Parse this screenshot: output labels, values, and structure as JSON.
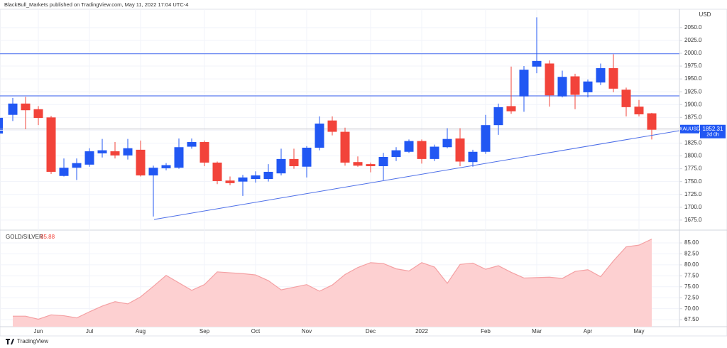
{
  "header": {
    "title": "BlackBull_Markets published on TradingView.com, May 11, 2022 17:04 UTC-4"
  },
  "footer": {
    "logo": "TradingView"
  },
  "chart_data": [
    {
      "type": "candlestick",
      "symbol": "XAUUSD",
      "currency": "USD",
      "last_price": 1852.31,
      "countdown": "2d 0h",
      "up_color": "#2157f3",
      "down_color": "#f2433a",
      "grid": true,
      "categories": [
        null,
        null,
        "Jun",
        null,
        null,
        null,
        "Jul",
        null,
        null,
        null,
        "Aug",
        null,
        null,
        null,
        null,
        "Sep",
        null,
        null,
        null,
        "Oct",
        null,
        null,
        null,
        "Nov",
        null,
        null,
        null,
        null,
        "Dec",
        null,
        null,
        null,
        "2022",
        null,
        null,
        null,
        null,
        "Feb",
        null,
        null,
        null,
        "Mar",
        null,
        null,
        null,
        "Apr",
        null,
        null,
        null,
        "May",
        null
      ],
      "open": [
        1880,
        1902,
        1891,
        1875,
        1761,
        1777,
        1783,
        1805,
        1809,
        1801,
        1812,
        1762,
        1776,
        1777,
        1818,
        1827,
        1787,
        1752,
        1750,
        1755,
        1755,
        1766,
        1794,
        1779,
        1816,
        1869,
        1847,
        1788,
        1784,
        1780,
        1798,
        1808,
        1829,
        1794,
        1817,
        1834,
        1788,
        1808,
        1860,
        1897,
        1916,
        1974,
        1980,
        1916,
        1955,
        1924,
        1943,
        1971,
        1929,
        1896,
        1883
      ],
      "high": [
        1913,
        1915,
        1897,
        1878,
        1795,
        1795,
        1815,
        1833,
        1827,
        1833,
        1830,
        1781,
        1786,
        1834,
        1834,
        1830,
        1789,
        1760,
        1763,
        1770,
        1784,
        1814,
        1814,
        1819,
        1877,
        1877,
        1855,
        1799,
        1787,
        1806,
        1817,
        1832,
        1832,
        1822,
        1854,
        1854,
        1812,
        1880,
        1902,
        1974,
        1975,
        2070,
        1986,
        1966,
        1960,
        1949,
        1980,
        1998,
        1933,
        1909,
        1884
      ],
      "low": [
        1868,
        1852,
        1860,
        1765,
        1760,
        1753,
        1779,
        1797,
        1795,
        1793,
        1760,
        1682,
        1772,
        1775,
        1814,
        1780,
        1745,
        1743,
        1722,
        1748,
        1750,
        1762,
        1775,
        1758,
        1811,
        1840,
        1781,
        1779,
        1768,
        1753,
        1790,
        1806,
        1785,
        1790,
        1815,
        1780,
        1779,
        1804,
        1841,
        1882,
        1886,
        1961,
        1896,
        1914,
        1891,
        1914,
        1938,
        1924,
        1877,
        1877,
        1832
      ],
      "close": [
        1902,
        1889,
        1874,
        1769,
        1777,
        1786,
        1809,
        1811,
        1801,
        1815,
        1762,
        1777,
        1782,
        1817,
        1827,
        1787,
        1751,
        1747,
        1758,
        1762,
        1769,
        1794,
        1780,
        1816,
        1863,
        1847,
        1787,
        1781,
        1780,
        1798,
        1811,
        1829,
        1794,
        1818,
        1833,
        1789,
        1808,
        1860,
        1895,
        1887,
        1968,
        1985,
        1918,
        1954,
        1919,
        1945,
        1971,
        1931,
        1895,
        1881,
        1851
      ],
      "hlines": [
        1999,
        1917
      ],
      "hline_color": "#5b7cf0",
      "ylim": [
        1661,
        2083
      ],
      "yticks": [
        {
          "value": 1675,
          "label": "1675.0"
        },
        {
          "value": 1700,
          "label": "1700.0"
        },
        {
          "value": 1725,
          "label": "1725.0"
        },
        {
          "value": 1750,
          "label": "1750.0"
        },
        {
          "value": 1775,
          "label": "1775.0"
        },
        {
          "value": 1800,
          "label": "1800.0"
        },
        {
          "value": 1825,
          "label": "1825.0"
        },
        {
          "value": 1850,
          "label": "1850.0"
        },
        {
          "value": 1875,
          "label": "1875.0"
        },
        {
          "value": 1900,
          "label": "1900.0"
        },
        {
          "value": 1925,
          "label": "1925.0"
        },
        {
          "value": 1950,
          "label": "1950.0"
        },
        {
          "value": 1975,
          "label": "1975.0"
        },
        {
          "value": 2000,
          "label": "2000.0"
        },
        {
          "value": 2025,
          "label": "2025.0"
        },
        {
          "value": 2050,
          "label": "2050.0"
        }
      ]
    },
    {
      "type": "area",
      "name": "GOLD/SILVER",
      "color": "#f4a0a3",
      "fill": "#fdd0d1",
      "label_color": "#f2433a",
      "values": [
        68.3,
        68.3,
        67.6,
        68.6,
        68.4,
        67.9,
        69.3,
        70.6,
        71.6,
        71.1,
        72.7,
        75.1,
        77.6,
        75.9,
        74.2,
        75.5,
        78.4,
        78.2,
        78.0,
        77.7,
        76.4,
        74.3,
        74.9,
        75.5,
        74.0,
        75.4,
        77.8,
        79.4,
        80.5,
        80.3,
        79.1,
        78.6,
        80.5,
        79.5,
        75.8,
        80.1,
        80.4,
        79.0,
        79.8,
        78.3,
        77.0,
        77.1,
        77.2,
        76.9,
        78.5,
        78.9,
        77.3,
        80.9,
        84.1,
        84.5,
        85.88
      ],
      "ylim": [
        65.9,
        87.6
      ],
      "yticks": [
        {
          "value": 67.5,
          "label": "67.50"
        },
        {
          "value": 70,
          "label": "70.00"
        },
        {
          "value": 72.5,
          "label": "72.50"
        },
        {
          "value": 75,
          "label": "75.00"
        },
        {
          "value": 77.5,
          "label": "77.50"
        },
        {
          "value": 80,
          "label": "80.00"
        },
        {
          "value": 82.5,
          "label": "82.50"
        },
        {
          "value": 85,
          "label": "85.00"
        }
      ]
    }
  ]
}
